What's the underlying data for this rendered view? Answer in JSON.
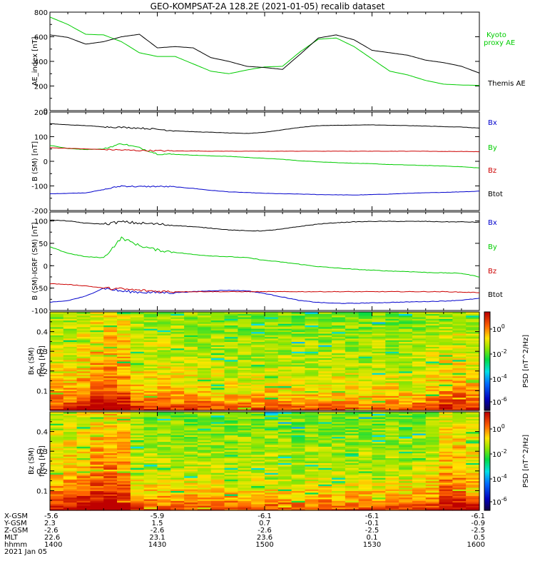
{
  "title": "GEO-KOMPSAT-2A 128.2E (2021-01-05) recalib dataset",
  "chart_data": [
    {
      "type": "line",
      "ylabel": "AE_index [nT]",
      "ylim": [
        0,
        800
      ],
      "yticks": [
        0,
        200,
        400,
        600,
        800
      ],
      "x": [
        1400,
        1405,
        1410,
        1415,
        1420,
        1425,
        1430,
        1435,
        1440,
        1445,
        1450,
        1455,
        1500,
        1505,
        1510,
        1515,
        1520,
        1525,
        1530,
        1535,
        1540,
        1545,
        1550,
        1555,
        1600
      ],
      "series": [
        {
          "name": "Kyoto proxy AE",
          "color": "#00cc00",
          "values": [
            760,
            700,
            620,
            615,
            560,
            470,
            440,
            440,
            380,
            320,
            300,
            330,
            355,
            360,
            480,
            580,
            590,
            520,
            420,
            320,
            290,
            245,
            215,
            208,
            205
          ]
        },
        {
          "name": "Themis AE",
          "color": "#000000",
          "values": [
            615,
            595,
            540,
            560,
            600,
            620,
            510,
            520,
            510,
            430,
            400,
            360,
            350,
            335,
            460,
            590,
            615,
            575,
            490,
            470,
            450,
            410,
            390,
            360,
            305
          ]
        }
      ]
    },
    {
      "type": "line",
      "ylabel": "B (SM) [nT]",
      "ylim": [
        -200,
        200
      ],
      "yticks": [
        -200,
        -100,
        0,
        100,
        200
      ],
      "x": [
        1400,
        1405,
        1410,
        1415,
        1420,
        1425,
        1430,
        1435,
        1440,
        1445,
        1450,
        1455,
        1500,
        1505,
        1510,
        1515,
        1520,
        1525,
        1530,
        1535,
        1540,
        1545,
        1550,
        1555,
        1600
      ],
      "series": [
        {
          "name": "Bx",
          "color": "#0000cc",
          "values": [
            -132,
            -130,
            -128,
            -115,
            -100,
            -103,
            -102,
            -104,
            -110,
            -118,
            -124,
            -127,
            -130,
            -132,
            -133,
            -135,
            -136,
            -137,
            -135,
            -133,
            -130,
            -128,
            -126,
            -124,
            -121
          ]
        },
        {
          "name": "By",
          "color": "#00cc00",
          "values": [
            65,
            52,
            48,
            50,
            72,
            55,
            30,
            28,
            25,
            22,
            20,
            16,
            12,
            8,
            2,
            -2,
            -5,
            -8,
            -10,
            -13,
            -15,
            -17,
            -19,
            -22,
            -27
          ]
        },
        {
          "name": "Bz",
          "color": "#cc0000",
          "values": [
            55,
            53,
            50,
            48,
            46,
            44,
            43,
            42,
            42,
            41,
            41,
            41,
            41,
            41,
            41,
            41,
            41,
            41,
            41,
            41,
            41,
            41,
            40,
            40,
            39
          ]
        },
        {
          "name": "Btot",
          "color": "#000000",
          "values": [
            153,
            148,
            145,
            140,
            138,
            135,
            130,
            124,
            120,
            118,
            115,
            113,
            118,
            128,
            138,
            145,
            146,
            147,
            148,
            146,
            145,
            143,
            141,
            139,
            135
          ]
        }
      ]
    },
    {
      "type": "line",
      "ylabel": "B (SM)-IGRF (SM) [nT]",
      "ylim": [
        -100,
        120
      ],
      "yticks": [
        -100,
        -50,
        0,
        50,
        100
      ],
      "x": [
        1400,
        1405,
        1410,
        1415,
        1420,
        1425,
        1430,
        1435,
        1440,
        1445,
        1450,
        1455,
        1500,
        1505,
        1510,
        1515,
        1520,
        1525,
        1530,
        1535,
        1540,
        1545,
        1550,
        1555,
        1600
      ],
      "series": [
        {
          "name": "Bx",
          "color": "#0000cc",
          "values": [
            -82,
            -78,
            -68,
            -50,
            -57,
            -59,
            -60,
            -60,
            -58,
            -56,
            -55,
            -56,
            -62,
            -70,
            -78,
            -82,
            -84,
            -84,
            -83,
            -82,
            -81,
            -80,
            -79,
            -77,
            -73
          ]
        },
        {
          "name": "By",
          "color": "#00cc00",
          "values": [
            42,
            28,
            20,
            18,
            62,
            45,
            35,
            30,
            25,
            22,
            20,
            18,
            12,
            8,
            3,
            -2,
            -5,
            -8,
            -10,
            -12,
            -13,
            -15,
            -16,
            -17,
            -25
          ]
        },
        {
          "name": "Bz",
          "color": "#cc0000",
          "values": [
            -40,
            -42,
            -45,
            -50,
            -52,
            -55,
            -57,
            -58,
            -58,
            -58,
            -58,
            -58,
            -58,
            -58,
            -58,
            -58,
            -58,
            -58,
            -58,
            -58,
            -58,
            -58,
            -58,
            -59,
            -60
          ]
        },
        {
          "name": "Btot",
          "color": "#000000",
          "values": [
            102,
            100,
            95,
            93,
            98,
            95,
            93,
            90,
            87,
            84,
            80,
            78,
            78,
            82,
            88,
            93,
            96,
            98,
            99,
            99,
            99,
            99,
            98,
            98,
            97
          ]
        }
      ]
    },
    {
      "type": "heatmap",
      "ylabel": "Bx (SM) freq [Hz]",
      "ylim": [
        0,
        0.5
      ],
      "yticks": [
        0.1,
        0.2,
        0.3,
        0.4
      ],
      "colorbar_label": "PSD [nT^2/Hz]",
      "colorbar_ticks": [
        1,
        0.01,
        0.0001,
        1e-06
      ],
      "colorbar_tick_labels": [
        "10^0",
        "10^-2",
        "10^-4",
        "10^-6"
      ],
      "x_range": [
        1400,
        1600
      ],
      "n_time_bins": 32,
      "n_freq_bins": 60,
      "freq_profile_log10": [
        0.2,
        -0.2,
        -0.6,
        -0.9,
        -1.1,
        -1.25,
        -1.35,
        -1.45,
        -1.55,
        -1.6,
        -1.65,
        -1.7,
        -1.75,
        -1.8,
        -1.85,
        -1.9,
        -1.95,
        -2.0,
        -2.05,
        -2.1
      ],
      "time_offset_log10": [
        0.3,
        0.4,
        0.7,
        1.2,
        1.3,
        1.1,
        0.4,
        0.3,
        0.3,
        0.2,
        0.2,
        0.1,
        0.0,
        0.0,
        -0.1,
        0.0,
        0.1,
        0.0,
        -0.1,
        0.0,
        -0.1,
        0.1,
        0.0,
        -0.1,
        0.0,
        0.0,
        -0.1,
        0.0,
        0.2,
        0.6,
        0.7,
        0.4
      ]
    },
    {
      "type": "heatmap",
      "ylabel": "Bz (SM) freq [Hz]",
      "ylim": [
        0,
        0.5
      ],
      "yticks": [
        0.1,
        0.2,
        0.3,
        0.4
      ],
      "colorbar_label": "PSD [nT^2/Hz]",
      "colorbar_ticks": [
        1,
        0.01,
        0.0001,
        1e-06
      ],
      "colorbar_tick_labels": [
        "10^0",
        "10^-2",
        "10^-4",
        "10^-6"
      ],
      "x_range": [
        1400,
        1600
      ],
      "n_time_bins": 32,
      "n_freq_bins": 60,
      "freq_profile_log10": [
        0.4,
        0.0,
        -0.4,
        -0.7,
        -0.95,
        -1.1,
        -1.25,
        -1.35,
        -1.45,
        -1.55,
        -1.6,
        -1.65,
        -1.7,
        -1.75,
        -1.8,
        -1.85,
        -1.9,
        -1.95,
        -2.0,
        -2.05
      ],
      "time_offset_log10": [
        0.5,
        0.7,
        1.0,
        1.3,
        1.5,
        1.2,
        0.0,
        -0.1,
        -0.1,
        -0.2,
        -0.2,
        -0.1,
        -0.2,
        -0.2,
        -0.1,
        -0.2,
        -0.1,
        -0.2,
        -0.3,
        -0.2,
        -0.1,
        -0.2,
        -0.2,
        -0.1,
        -0.2,
        -0.1,
        -0.2,
        -0.1,
        0.2,
        0.9,
        1.0,
        0.6
      ]
    }
  ],
  "ephemeris": {
    "labels": [
      "X-GSM",
      "Y-GSM",
      "Z-GSM",
      "MLT",
      "hhmm"
    ],
    "columns": [
      [
        "-5.6",
        "2.3",
        "-2.6",
        "22.6",
        "1400"
      ],
      [
        "-5.9",
        "1.5",
        "-2.6",
        "23.1",
        "1430"
      ],
      [
        "-6.1",
        "0.7",
        "-2.6",
        "23.6",
        "1500"
      ],
      [
        "-6.1",
        "-0.1",
        "-2.5",
        "0.1",
        "1530"
      ],
      [
        "-6.1",
        "-0.9",
        "-2.5",
        "0.5",
        "1600"
      ]
    ],
    "date": "2021 Jan 05"
  },
  "colors": {
    "axis": "#000000",
    "green": "#00cc00",
    "red": "#cc0000",
    "blue": "#0000cc",
    "black": "#000000"
  }
}
